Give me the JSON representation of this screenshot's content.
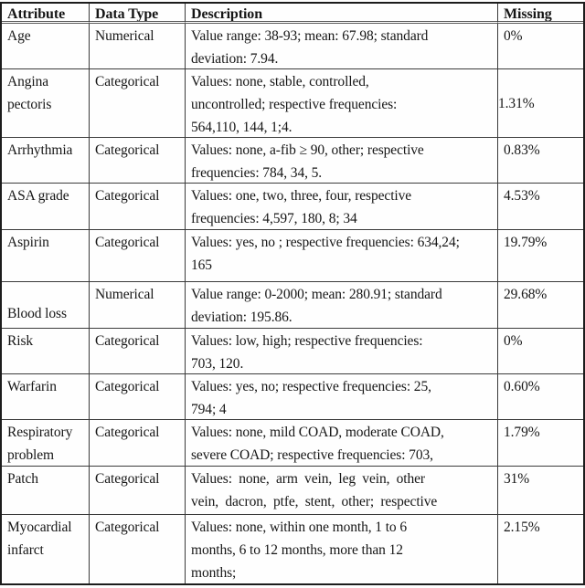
{
  "table": {
    "columns": [
      {
        "label": "Attribute"
      },
      {
        "label": "Data Type"
      },
      {
        "label": "Description"
      },
      {
        "label": "Missing"
      }
    ],
    "rows": [
      {
        "attribute": "Age",
        "data_type": "Numerical",
        "description": "Value range: 38-93; mean: 67.98; standard\ndeviation: 7.94.",
        "missing": "0%"
      },
      {
        "attribute": "Angina\npectoris",
        "data_type": "Categorical",
        "description": "Values: none, stable, controlled,\nuncontrolled; respective frequencies:\n564,110, 144, 1;4.",
        "missing": "1.31%"
      },
      {
        "attribute": "Arrhythmia",
        "data_type": "Categorical",
        "description": "Values: none, a-fib ≥ 90, other; respective\nfrequencies: 784, 34, 5.",
        "missing": "0.83%"
      },
      {
        "attribute": "ASA grade",
        "data_type": "Categorical",
        "description": "Values: one, two, three, four, respective\nfrequencies: 4,597, 180, 8; 34",
        "missing": "4.53%"
      },
      {
        "attribute": "Aspirin",
        "data_type": "Categorical",
        "description": "Values: yes, no ; respective frequencies: 634,24;\n165",
        "missing": "19.79%"
      },
      {
        "attribute": "Blood loss",
        "data_type": "Numerical",
        "description": "Value range: 0-2000; mean: 280.91; standard\ndeviation: 195.86.",
        "missing": "29.68%"
      },
      {
        "attribute": "Risk",
        "data_type": "Categorical",
        "description": "Values: low, high; respective frequencies:\n703, 120.",
        "missing": "0%"
      },
      {
        "attribute": "Warfarin",
        "data_type": "Categorical",
        "description": "Values: yes, no; respective frequencies: 25,\n794; 4",
        "missing": "0.60%"
      },
      {
        "attribute": "Respiratory\nproblem",
        "data_type": "Categorical",
        "description": "Values: none, mild COAD, moderate COAD,\nsevere COAD; respective frequencies: 703,",
        "missing": "1.79%"
      },
      {
        "attribute": "Patch",
        "data_type": "Categorical",
        "description": "Values: none, arm vein, leg vein, other\nvein, dacron, ptfe, stent, other; respective",
        "missing": "31%"
      },
      {
        "attribute": "Myocardial\ninfarct",
        "data_type": "Categorical",
        "description": "Values: none, within one month, 1 to 6\nmonths, 6 to 12 months, more than 12\nmonths;",
        "missing": "2.15%"
      }
    ]
  }
}
